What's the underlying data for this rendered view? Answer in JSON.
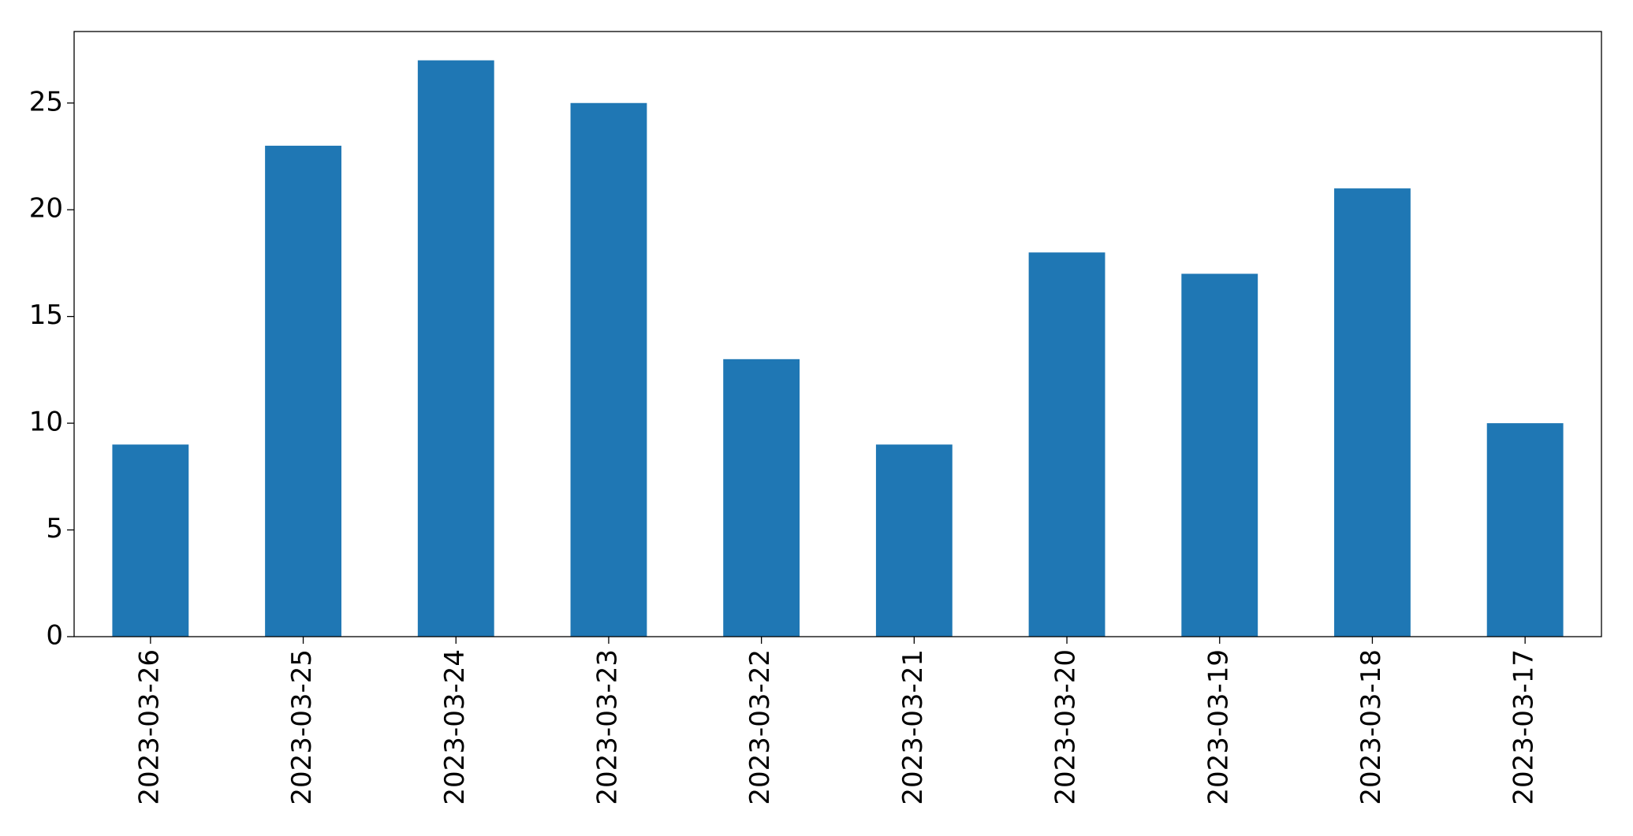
{
  "chart_data": {
    "type": "bar",
    "categories": [
      "2023-03-26",
      "2023-03-25",
      "2023-03-24",
      "2023-03-23",
      "2023-03-22",
      "2023-03-21",
      "2023-03-20",
      "2023-03-19",
      "2023-03-18",
      "2023-03-17"
    ],
    "values": [
      9,
      23,
      27,
      25,
      13,
      9,
      18,
      17,
      21,
      10
    ],
    "color": "#1f77b4",
    "ylim": [
      0,
      28.35
    ],
    "yticks": [
      0,
      5,
      10,
      15,
      20,
      25
    ],
    "grid": false
  }
}
